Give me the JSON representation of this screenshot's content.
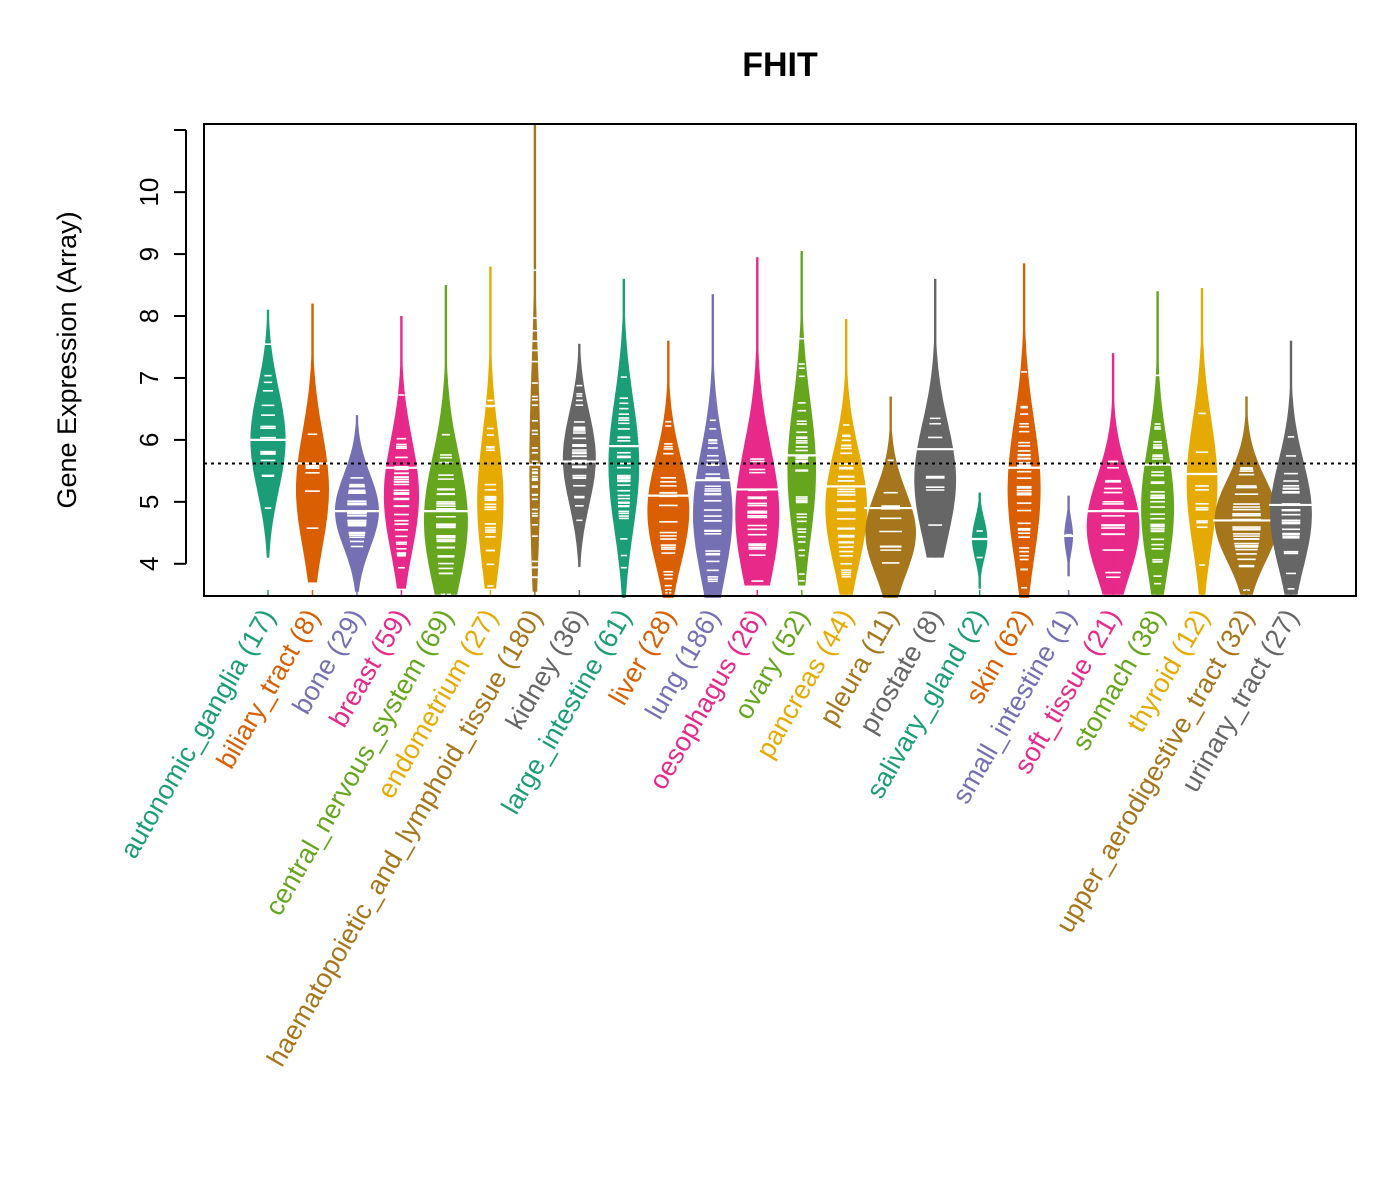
{
  "chart_data": {
    "type": "violin",
    "title": "FHIT",
    "xlabel": "",
    "ylabel": "Gene Expression (Array)",
    "ylim": [
      3.48,
      11.1
    ],
    "yticks": [
      4,
      5,
      6,
      7,
      8,
      9,
      10
    ],
    "reference_line": 5.62,
    "grid": false,
    "legend": "none",
    "categories": [
      {
        "name": "autonomic_ganglia",
        "n": 17,
        "label": "autonomic_ganglia (17)",
        "color": "#1B9E77",
        "min": 4.1,
        "max": 8.1,
        "median": 6.0,
        "peak": 6.0,
        "width": 0.8
      },
      {
        "name": "biliary_tract",
        "n": 8,
        "label": "biliary_tract (8)",
        "color": "#D95F02",
        "min": 3.7,
        "max": 8.2,
        "median": 5.62,
        "peak": 5.2,
        "width": 0.75
      },
      {
        "name": "bone",
        "n": 29,
        "label": "bone (29)",
        "color": "#7570B3",
        "min": 3.55,
        "max": 6.4,
        "median": 4.85,
        "peak": 4.85,
        "width": 1.0
      },
      {
        "name": "breast",
        "n": 59,
        "label": "breast (59)",
        "color": "#E7298A",
        "min": 3.6,
        "max": 8.0,
        "median": 5.55,
        "peak": 5.1,
        "width": 0.8
      },
      {
        "name": "central_nervous_system",
        "n": 69,
        "label": "central_nervous_system (69)",
        "color": "#66A61E",
        "min": 3.5,
        "max": 8.5,
        "median": 4.85,
        "peak": 4.7,
        "width": 1.0
      },
      {
        "name": "endometrium",
        "n": 27,
        "label": "endometrium (27)",
        "color": "#E6AB02",
        "min": 3.6,
        "max": 8.8,
        "median": 6.55,
        "peak": 5.0,
        "width": 0.6
      },
      {
        "name": "haematopoietic_and_lymphoid_tissue",
        "n": 180,
        "label": "haematopoietic_and_lymphoid_tissue (180)",
        "color": "#A6761D",
        "min": 3.55,
        "max": 11.1,
        "median": 5.6,
        "peak": 5.6,
        "width": 0.25
      },
      {
        "name": "kidney",
        "n": 36,
        "label": "kidney (36)",
        "color": "#666666",
        "min": 3.95,
        "max": 7.55,
        "median": 5.65,
        "peak": 5.7,
        "width": 0.75
      },
      {
        "name": "large_intestine",
        "n": 61,
        "label": "large_intestine (61)",
        "color": "#1B9E77",
        "min": 3.45,
        "max": 8.6,
        "median": 5.9,
        "peak": 5.6,
        "width": 0.7
      },
      {
        "name": "liver",
        "n": 28,
        "label": "liver (28)",
        "color": "#D95F02",
        "min": 3.45,
        "max": 7.6,
        "median": 5.1,
        "peak": 4.85,
        "width": 0.95
      },
      {
        "name": "lung",
        "n": 186,
        "label": "lung (186)",
        "color": "#7570B3",
        "min": 3.45,
        "max": 8.35,
        "median": 5.35,
        "peak": 4.8,
        "width": 0.9
      },
      {
        "name": "oesophagus",
        "n": 26,
        "label": "oesophagus (26)",
        "color": "#E7298A",
        "min": 3.65,
        "max": 8.95,
        "median": 5.2,
        "peak": 4.8,
        "width": 1.0
      },
      {
        "name": "ovary",
        "n": 52,
        "label": "ovary (52)",
        "color": "#66A61E",
        "min": 3.65,
        "max": 9.05,
        "median": 5.75,
        "peak": 5.5,
        "width": 0.65
      },
      {
        "name": "pancreas",
        "n": 44,
        "label": "pancreas (44)",
        "color": "#E6AB02",
        "min": 3.5,
        "max": 7.95,
        "median": 5.25,
        "peak": 4.9,
        "width": 0.95
      },
      {
        "name": "pleura",
        "n": 11,
        "label": "pleura (11)",
        "color": "#A6761D",
        "min": 3.45,
        "max": 6.7,
        "median": 4.9,
        "peak": 4.5,
        "width": 1.15
      },
      {
        "name": "prostate",
        "n": 8,
        "label": "prostate (8)",
        "color": "#666666",
        "min": 4.1,
        "max": 8.6,
        "median": 5.85,
        "peak": 5.35,
        "width": 0.95
      },
      {
        "name": "salivary_gland",
        "n": 2,
        "label": "salivary_gland (2)",
        "color": "#1B9E77",
        "min": 3.6,
        "max": 5.15,
        "median": 4.4,
        "peak": 4.4,
        "width": 0.35
      },
      {
        "name": "skin",
        "n": 62,
        "label": "skin (62)",
        "color": "#D95F02",
        "min": 3.45,
        "max": 8.85,
        "median": 5.55,
        "peak": 5.2,
        "width": 0.75
      },
      {
        "name": "small_intestine",
        "n": 1,
        "label": "small_intestine (1)",
        "color": "#7570B3",
        "min": 3.8,
        "max": 5.1,
        "median": 4.45,
        "peak": 4.45,
        "width": 0.2
      },
      {
        "name": "soft_tissue",
        "n": 21,
        "label": "soft_tissue (21)",
        "color": "#E7298A",
        "min": 3.5,
        "max": 7.4,
        "median": 4.85,
        "peak": 4.6,
        "width": 1.2
      },
      {
        "name": "stomach",
        "n": 38,
        "label": "stomach (38)",
        "color": "#66A61E",
        "min": 3.5,
        "max": 8.4,
        "median": 5.6,
        "peak": 4.9,
        "width": 0.75
      },
      {
        "name": "thyroid",
        "n": 12,
        "label": "thyroid (12)",
        "color": "#E6AB02",
        "min": 3.5,
        "max": 8.45,
        "median": 5.45,
        "peak": 5.3,
        "width": 0.7
      },
      {
        "name": "upper_aerodigestive_tract",
        "n": 32,
        "label": "upper_aerodigestive_tract (32)",
        "color": "#A6761D",
        "min": 3.5,
        "max": 6.7,
        "median": 4.7,
        "peak": 4.7,
        "width": 1.45
      },
      {
        "name": "urinary_tract",
        "n": 27,
        "label": "urinary_tract (27)",
        "color": "#666666",
        "min": 3.5,
        "max": 7.6,
        "median": 4.95,
        "peak": 4.8,
        "width": 0.95
      }
    ]
  }
}
